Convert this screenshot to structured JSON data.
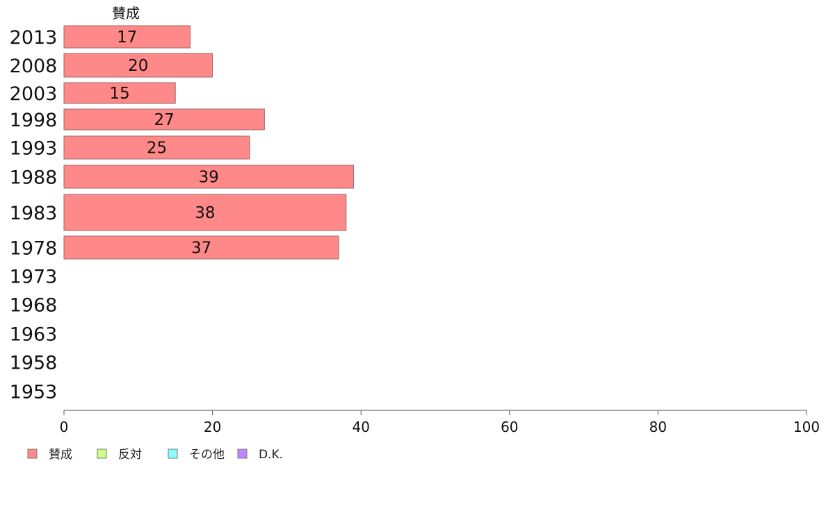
{
  "chart_data": {
    "type": "bar",
    "orientation": "horizontal",
    "stacked": true,
    "categories": [
      "2013",
      "2008",
      "2003",
      "1998",
      "1993",
      "1988",
      "1983",
      "1978",
      "1973",
      "1968",
      "1963",
      "1958",
      "1953"
    ],
    "series": [
      {
        "name": "賛成",
        "color": "#ff8888",
        "values": [
          17,
          20,
          15,
          27,
          25,
          39,
          38,
          37,
          null,
          null,
          null,
          null,
          null
        ]
      },
      {
        "name": "反対",
        "color": "#ccff88",
        "values": [
          null,
          null,
          null,
          null,
          null,
          null,
          null,
          null,
          null,
          null,
          null,
          null,
          null
        ]
      },
      {
        "name": "その他",
        "color": "#88ffff",
        "values": [
          null,
          null,
          null,
          null,
          null,
          null,
          null,
          null,
          null,
          null,
          null,
          null,
          null
        ]
      },
      {
        "name": "D.K.",
        "color": "#bb88ff",
        "values": [
          null,
          null,
          null,
          null,
          null,
          null,
          null,
          null,
          null,
          null,
          null,
          null,
          null
        ]
      }
    ],
    "series_header": "賛成",
    "xlim": [
      0,
      100
    ],
    "xticks": [
      0,
      20,
      40,
      60,
      80,
      100
    ],
    "grid": false,
    "legend_position": "bottom-left"
  }
}
